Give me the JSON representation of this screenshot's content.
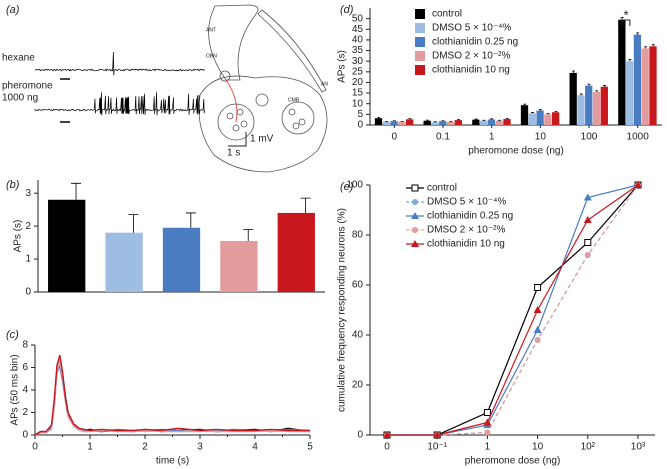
{
  "panel_a": {
    "label": "(a)",
    "hexane": "hexane",
    "pheromone": "pheromone",
    "dose": "1000 ng",
    "scale_v": "1 mV",
    "scale_t": "1 s",
    "regions": [
      "ANT",
      "OBN",
      "CMB",
      "AN"
    ]
  },
  "chart_data": [
    {
      "type": "bar",
      "panel": "(b)",
      "ylabel": "APs (s)",
      "categories": [
        null,
        null,
        null,
        null,
        null
      ],
      "values": [
        2.8,
        1.8,
        1.95,
        1.55,
        2.4
      ],
      "errors": [
        0.5,
        0.55,
        0.45,
        0.35,
        0.45
      ],
      "colors": [
        "#000000",
        "#9dbde2",
        "#4a7cc2",
        "#e39c9e",
        "#c8181e"
      ],
      "ylim": [
        0,
        3.4
      ],
      "yticks": [
        0,
        1,
        2,
        3
      ]
    },
    {
      "type": "line",
      "panel": "(c)",
      "xlabel": "time (s)",
      "ylabel": "APs (50 ms bin)",
      "x": [
        0,
        0.1,
        0.2,
        0.3,
        0.35,
        0.4,
        0.45,
        0.5,
        0.55,
        0.6,
        0.7,
        0.8,
        0.9,
        1,
        1.2,
        1.5,
        1.8,
        2,
        2.3,
        2.6,
        3,
        3.3,
        3.6,
        4,
        4.3,
        4.6,
        5
      ],
      "series": [
        {
          "name": "control",
          "color": "#000000",
          "values": [
            0,
            0.3,
            0.2,
            0.8,
            3,
            6,
            7,
            5.5,
            3.5,
            2,
            1,
            0.6,
            0.4,
            0.5,
            0.3,
            0.4,
            0.3,
            0.5,
            0.3,
            0.4,
            0.5,
            0.3,
            0.4,
            0.5,
            0.3,
            0.6,
            0.3
          ]
        },
        {
          "name": "DMSO 5 × 10⁻⁴%",
          "color": "#9dbde2",
          "values": [
            0,
            0.2,
            0.3,
            0.6,
            2.6,
            5.8,
            6.8,
            5,
            3,
            1.6,
            0.8,
            0.4,
            0.3,
            0.4,
            0.4,
            0.3,
            0.4,
            0.3,
            0.4,
            0.3,
            0.3,
            0.4,
            0.3,
            0.4,
            0.3,
            0.4,
            0.3
          ]
        },
        {
          "name": "clothianidin 0.25 ng",
          "color": "#4a7cc2",
          "values": [
            0,
            0.3,
            0.3,
            0.7,
            2.8,
            5.5,
            6.2,
            4.8,
            3.2,
            1.8,
            0.9,
            0.5,
            0.4,
            0.4,
            0.3,
            0.5,
            0.4,
            0.4,
            0.5,
            0.4,
            0.4,
            0.3,
            0.5,
            0.4,
            0.4,
            0.5,
            0.4
          ]
        },
        {
          "name": "DMSO 2 × 10⁻²%",
          "color": "#e39c9e",
          "values": [
            0,
            0.2,
            0.2,
            0.5,
            2.4,
            5.6,
            6.5,
            5.2,
            3.1,
            1.7,
            0.8,
            0.5,
            0.3,
            0.3,
            0.4,
            0.3,
            0.3,
            0.4,
            0.3,
            0.3,
            0.4,
            0.3,
            0.3,
            0.3,
            0.4,
            0.3,
            0.3
          ]
        },
        {
          "name": "clothianidin 10 ng",
          "color": "#c8181e",
          "values": [
            0,
            0.3,
            0.3,
            0.9,
            3.2,
            6.2,
            7.1,
            5.6,
            3.4,
            2,
            1,
            0.6,
            0.5,
            0.4,
            0.5,
            0.4,
            0.4,
            0.5,
            0.4,
            0.6,
            0.4,
            0.5,
            0.4,
            0.4,
            0.5,
            0.4,
            0.4
          ]
        }
      ],
      "xlim": [
        0,
        5
      ],
      "xticks": [
        0,
        0.5,
        1,
        1.5,
        2,
        2.5,
        3,
        3.5,
        4,
        4.5,
        5
      ],
      "ylim": [
        0,
        8
      ],
      "yticks": [
        0,
        2,
        4,
        6,
        8
      ]
    },
    {
      "type": "bar",
      "panel": "(d)",
      "ylabel": "APs (s)",
      "xlabel": "pheromone dose (ng)",
      "categories": [
        "0",
        "0.1",
        "1",
        "10",
        "100",
        "1000"
      ],
      "series": [
        {
          "name": "control",
          "color": "#000000",
          "values": [
            3.2,
            2,
            2.5,
            9.3,
            24.5,
            49.5
          ],
          "errors": [
            0.4,
            0.3,
            0.3,
            0.5,
            0.9,
            1
          ]
        },
        {
          "name": "DMSO 5 × 10⁻⁴%",
          "color": "#9dbde2",
          "values": [
            1.5,
            1.3,
            2,
            5.5,
            14,
            30
          ],
          "errors": [
            0.2,
            0.2,
            0.2,
            0.4,
            0.6,
            0.8
          ]
        },
        {
          "name": "clothianidin 0.25 ng",
          "color": "#4a7cc2",
          "values": [
            1.8,
            1.8,
            2.6,
            6.8,
            18.5,
            42.5
          ],
          "errors": [
            0.2,
            0.2,
            0.3,
            0.4,
            0.7,
            0.8
          ]
        },
        {
          "name": "DMSO 2 × 10⁻²%",
          "color": "#e39c9e",
          "values": [
            1.5,
            1.5,
            2,
            5,
            15.5,
            36
          ],
          "errors": [
            0.2,
            0.2,
            0.2,
            0.4,
            0.6,
            0.8
          ]
        },
        {
          "name": "clothianidin 10 ng",
          "color": "#c8181e",
          "values": [
            2.7,
            2.3,
            2.8,
            6,
            18,
            37
          ],
          "errors": [
            0.3,
            0.2,
            0.3,
            0.4,
            0.6,
            0.8
          ]
        }
      ],
      "ylim": [
        0,
        55
      ],
      "yticks": [
        0,
        5,
        10,
        15,
        20,
        25,
        30,
        35,
        40,
        45,
        50
      ],
      "annotation": "*",
      "legend": "upper left"
    },
    {
      "type": "line",
      "panel": "(e)",
      "xlabel": "pheromone dose (ng)",
      "ylabel": "cumulative frequency responding neurons (%)",
      "categories": [
        "0",
        "10⁻¹",
        "1",
        "10",
        "10²",
        "10³"
      ],
      "series": [
        {
          "name": "control",
          "color": "#000000",
          "marker": "square-open",
          "dashed": false,
          "values": [
            0,
            0,
            9,
            59,
            77,
            100
          ]
        },
        {
          "name": "DMSO 5 × 10⁻⁴%",
          "color": "#7fa9d8",
          "marker": "circle",
          "dashed": true,
          "values": [
            0,
            0,
            1,
            38,
            72,
            100
          ]
        },
        {
          "name": "clothianidin 0.25 ng",
          "color": "#4a7cc2",
          "marker": "triangle",
          "dashed": false,
          "values": [
            0,
            0,
            4,
            42,
            95,
            100
          ]
        },
        {
          "name": "DMSO 2 × 10⁻²%",
          "color": "#e39c9e",
          "marker": "circle",
          "dashed": true,
          "values": [
            0,
            0,
            1,
            38,
            72,
            100
          ]
        },
        {
          "name": "clothianidin 10 ng",
          "color": "#c8181e",
          "marker": "triangle",
          "dashed": false,
          "values": [
            0,
            0,
            5,
            50,
            86,
            100
          ]
        }
      ],
      "ylim": [
        0,
        100
      ],
      "yticks": [
        0,
        20,
        40,
        60,
        80,
        100
      ],
      "legend": "upper left"
    }
  ]
}
